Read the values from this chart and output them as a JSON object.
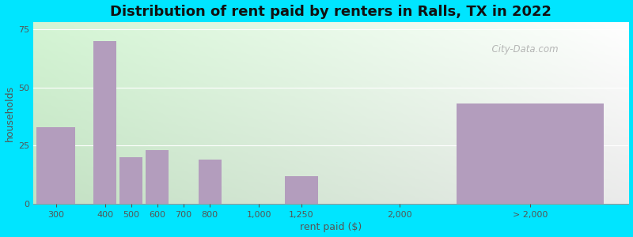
{
  "title": "Distribution of rent paid by renters in Ralls, TX in 2022",
  "xlabel": "rent paid ($)",
  "ylabel": "households",
  "categories": [
    "300",
    "400",
    "500",
    "600",
    "700",
    "800",
    "1,000",
    "1,250",
    "2,000",
    "> 2,000"
  ],
  "values": [
    33,
    70,
    20,
    23,
    0,
    19,
    0,
    12,
    0,
    43
  ],
  "positions": [
    0,
    1.5,
    2.3,
    3.1,
    3.9,
    4.7,
    6.2,
    7.5,
    10.5,
    14.5
  ],
  "widths": [
    1.2,
    0.7,
    0.7,
    0.7,
    0.7,
    0.7,
    1.0,
    1.0,
    1.0,
    4.5
  ],
  "xlim": [
    -0.7,
    17.5
  ],
  "bar_color": "#b39dbd",
  "ylim": [
    0,
    78
  ],
  "yticks": [
    0,
    25,
    50,
    75
  ],
  "bg_outer": "#00e5ff",
  "bg_inner_left": "#c8eec8",
  "bg_inner_right": "#f0f4f8",
  "title_fontsize": 13,
  "axis_label_fontsize": 9,
  "tick_fontsize": 8,
  "watermark": "  City-Data.com"
}
